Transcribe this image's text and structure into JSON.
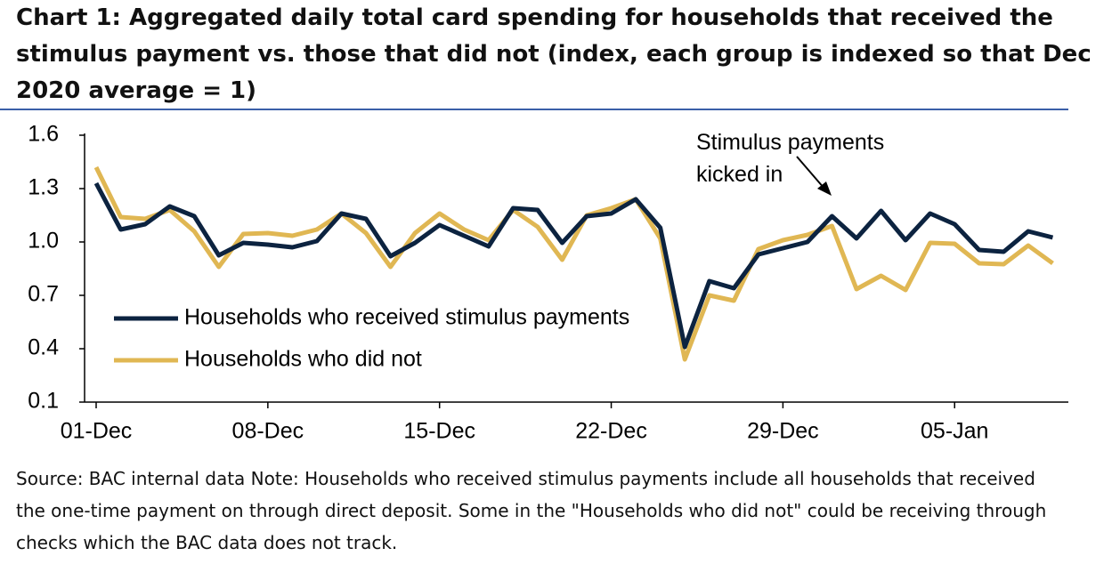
{
  "chart_data": {
    "type": "line",
    "title": "Chart 1: Aggregated daily total card spending for households that received the stimulus payment vs. those that did not (index, each group is indexed so that Dec 2020 average = 1)",
    "annotation": "Stimulus payments kicked in",
    "source": "Source: BAC internal data Note: Households who received stimulus payments include all households that received the one-time payment on through direct deposit. Some in the \"Households who did not\" could be receiving through checks which the BAC data does not track.",
    "categories": [
      "01-Dec",
      null,
      null,
      null,
      null,
      null,
      null,
      "08-Dec",
      null,
      null,
      null,
      null,
      null,
      null,
      "15-Dec",
      null,
      null,
      null,
      null,
      null,
      null,
      "22-Dec",
      null,
      null,
      null,
      null,
      null,
      null,
      "29-Dec",
      null,
      null,
      null,
      null,
      null,
      null,
      "05-Jan",
      null,
      null,
      null,
      null
    ],
    "series": [
      {
        "name": "Households who received stimulus payments",
        "color": "#0c2340",
        "values": [
          1.33,
          1.07,
          1.1,
          1.2,
          1.145,
          0.925,
          0.995,
          0.985,
          0.97,
          1.005,
          1.16,
          1.13,
          0.92,
          0.995,
          1.095,
          1.035,
          0.975,
          1.19,
          1.18,
          0.995,
          1.145,
          1.16,
          1.24,
          1.08,
          0.41,
          0.78,
          0.74,
          0.93,
          0.965,
          1.0,
          1.145,
          1.02,
          1.175,
          1.01,
          1.16,
          1.1,
          0.955,
          0.945,
          1.06,
          1.025
        ]
      },
      {
        "name": "Households who did not",
        "color": "#e0b753",
        "values": [
          1.42,
          1.14,
          1.13,
          1.18,
          1.06,
          0.86,
          1.045,
          1.05,
          1.035,
          1.07,
          1.16,
          1.05,
          0.86,
          1.05,
          1.16,
          1.07,
          1.01,
          1.18,
          1.085,
          0.9,
          1.15,
          1.19,
          1.24,
          1.02,
          0.34,
          0.7,
          0.67,
          0.96,
          1.01,
          1.04,
          1.09,
          0.735,
          0.81,
          0.73,
          0.995,
          0.99,
          0.88,
          0.875,
          0.98,
          0.88
        ]
      }
    ],
    "ylim": [
      0.1,
      1.6
    ],
    "yticks": [
      {
        "value": 0.1,
        "label": "0.1"
      },
      {
        "value": 0.4,
        "label": "0.4"
      },
      {
        "value": 0.7,
        "label": "0.7"
      },
      {
        "value": 1.0,
        "label": "1.0"
      },
      {
        "value": 1.3,
        "label": "1.3"
      },
      {
        "value": 1.6,
        "label": "1.6"
      }
    ],
    "legend": "left"
  }
}
